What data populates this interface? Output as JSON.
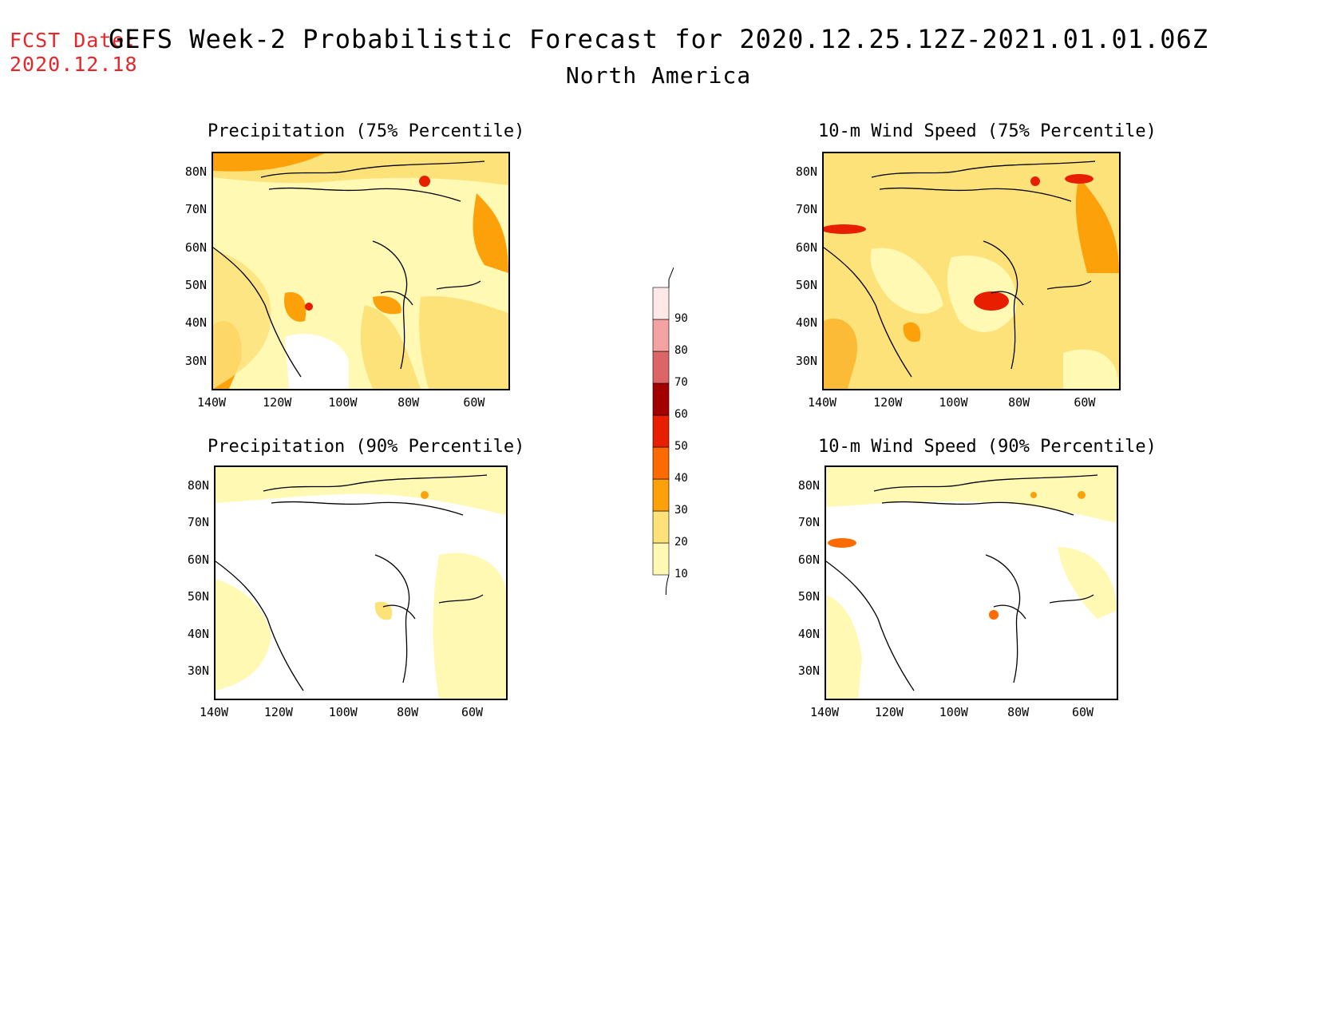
{
  "fcst": {
    "line1": "FCST Date:",
    "line2": "2020.12.18"
  },
  "title": "GEFS Week-2 Probabilistic Forecast for 2020.12.25.12Z-2021.01.01.06Z",
  "subtitle": "North America",
  "lat_labels": [
    "80N",
    "70N",
    "60N",
    "50N",
    "40N",
    "30N"
  ],
  "lon_labels": [
    "140W",
    "120W",
    "100W",
    "80W",
    "60W"
  ],
  "panels": [
    {
      "title": "Precipitation (75% Percentile)",
      "variant": "p75"
    },
    {
      "title": "10-m Wind Speed (75% Percentile)",
      "variant": "w75"
    },
    {
      "title": "Precipitation (90% Percentile)",
      "variant": "p90"
    },
    {
      "title": "10-m Wind Speed (90% Percentile)",
      "variant": "w90"
    }
  ],
  "legend": {
    "levels": [
      "10",
      "20",
      "30",
      "40",
      "50",
      "60",
      "70",
      "80",
      "90"
    ],
    "colors": [
      "#fff9b4",
      "#fde27a",
      "#fca10a",
      "#fc6a00",
      "#e81e00",
      "#a30000",
      "#dc6666",
      "#f4a3a3",
      "#fde8e8"
    ]
  }
}
